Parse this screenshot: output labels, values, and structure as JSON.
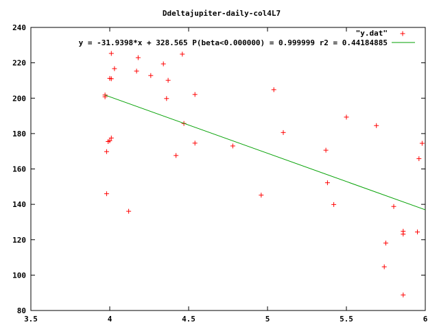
{
  "chart_data": {
    "type": "scatter",
    "title": "Ddeltajupiter-daily-col4L7",
    "xlim": [
      3.5,
      6
    ],
    "ylim": [
      80,
      240
    ],
    "x_ticks": [
      3.5,
      4,
      4.5,
      5,
      5.5,
      6
    ],
    "x_tick_labels": [
      "3.5",
      "4",
      "4.5",
      "5",
      "5.5",
      "6"
    ],
    "y_ticks": [
      80,
      100,
      120,
      140,
      160,
      180,
      200,
      220,
      240
    ],
    "y_tick_labels": [
      "80",
      "100",
      "120",
      "140",
      "160",
      "180",
      "200",
      "220",
      "240"
    ],
    "grid": false,
    "legend_position": "top-right",
    "series": [
      {
        "name": "\"y.dat\"",
        "kind": "points",
        "marker": "+",
        "color": "#ff0000",
        "points": [
          [
            3.97,
            201.8
          ],
          [
            3.97,
            200.8
          ],
          [
            3.98,
            169.8
          ],
          [
            3.98,
            146.0
          ],
          [
            3.99,
            175.5
          ],
          [
            4.0,
            176.0
          ],
          [
            4.01,
            177.5
          ],
          [
            4.0,
            211.2
          ],
          [
            4.01,
            211.0
          ],
          [
            4.01,
            225.3
          ],
          [
            4.03,
            216.7
          ],
          [
            4.12,
            136.1
          ],
          [
            4.17,
            215.3
          ],
          [
            4.18,
            222.9
          ],
          [
            4.26,
            212.8
          ],
          [
            4.34,
            219.4
          ],
          [
            4.36,
            199.8
          ],
          [
            4.37,
            210.1
          ],
          [
            4.42,
            167.6
          ],
          [
            4.46,
            224.9
          ],
          [
            4.47,
            185.7
          ],
          [
            4.54,
            202.1
          ],
          [
            4.54,
            174.6
          ],
          [
            4.78,
            173.0
          ],
          [
            4.96,
            145.2
          ],
          [
            5.04,
            204.8
          ],
          [
            5.1,
            180.6
          ],
          [
            5.37,
            170.6
          ],
          [
            5.38,
            152.2
          ],
          [
            5.42,
            139.9
          ],
          [
            5.5,
            189.3
          ],
          [
            5.69,
            184.5
          ],
          [
            5.74,
            104.7
          ],
          [
            5.75,
            118.1
          ],
          [
            5.8,
            138.8
          ],
          [
            5.86,
            88.8
          ],
          [
            5.86,
            123.2
          ],
          [
            5.86,
            124.8
          ],
          [
            5.95,
            124.4
          ],
          [
            5.96,
            165.8
          ],
          [
            5.98,
            174.5
          ]
        ]
      },
      {
        "name": "y = -31.9398*x + 328.565 P(beta<0.000000) = 0.999999 r2 = 0.44184885",
        "kind": "line",
        "color": "#00a000",
        "slope": -31.9398,
        "intercept": 328.565,
        "x_range": [
          3.97,
          6
        ]
      }
    ]
  }
}
